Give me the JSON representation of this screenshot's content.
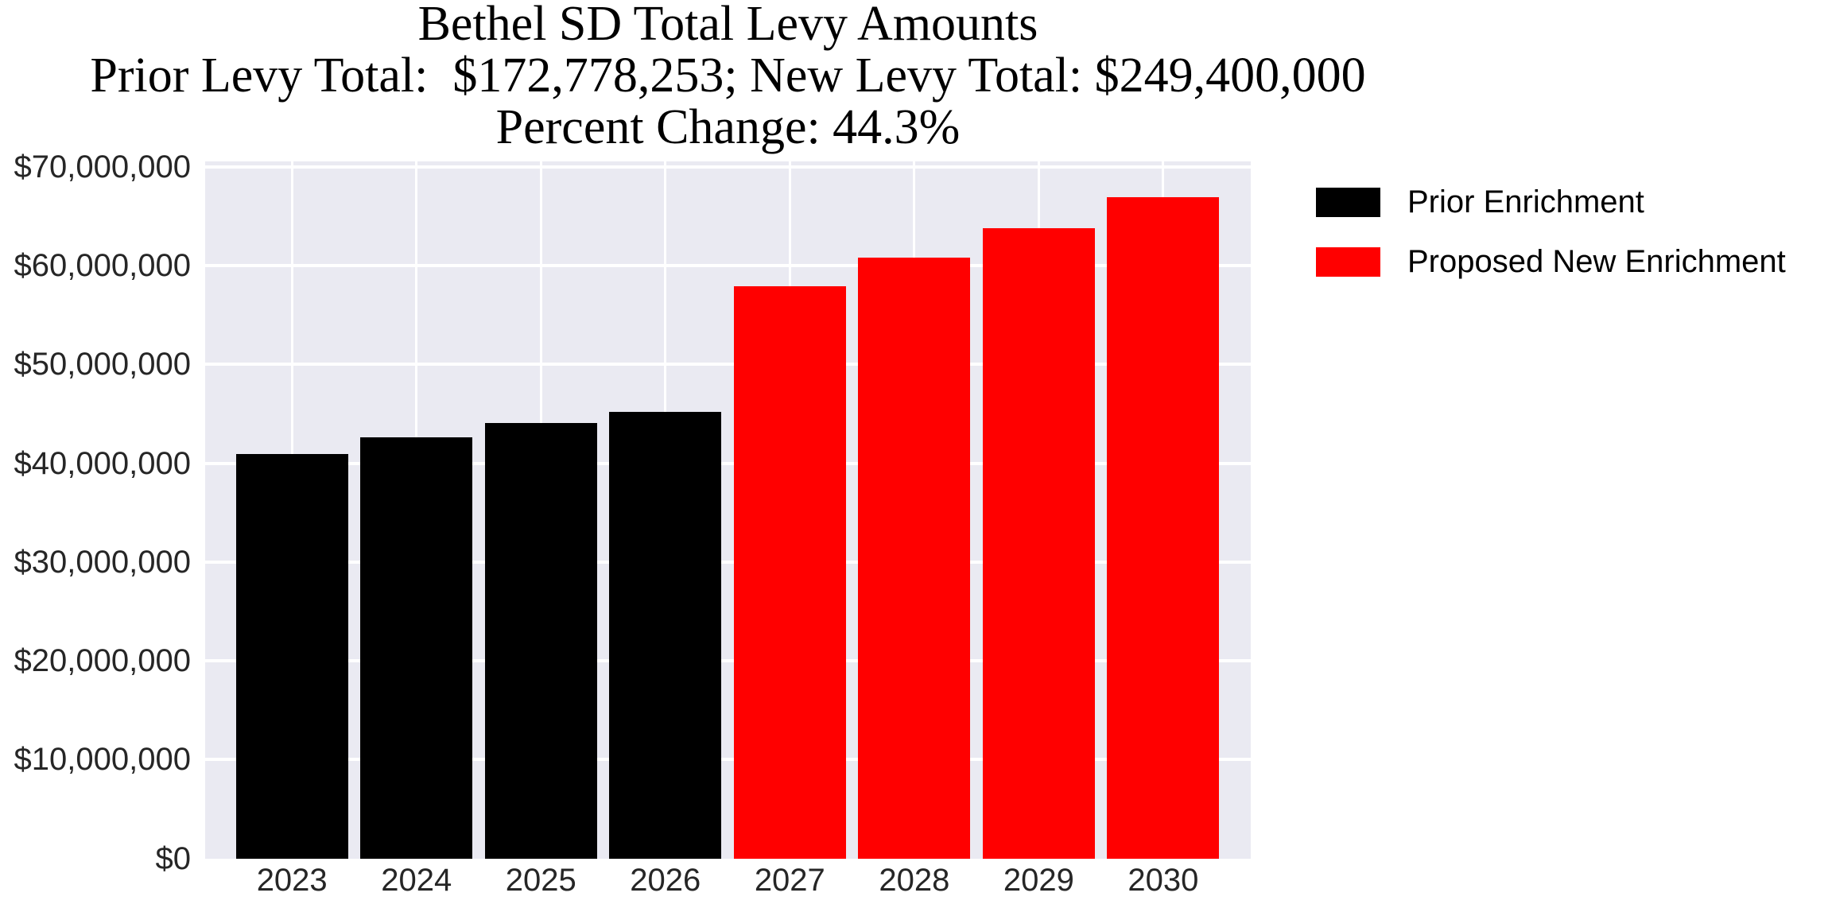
{
  "title": {
    "line1": "Bethel SD Total Levy Amounts",
    "line2": "Prior Levy Total:  $172,778,253; New Levy Total: $249,400,000",
    "line3": "Percent Change: 44.3%"
  },
  "legend": {
    "items": [
      {
        "label": "Prior Enrichment",
        "swatch": "black-swatch",
        "color": "#000000"
      },
      {
        "label": "Proposed New Enrichment",
        "swatch": "red-swatch",
        "color": "#ff0000"
      }
    ]
  },
  "axes": {
    "ytick_labels": [
      "$0",
      "$10,000,000",
      "$20,000,000",
      "$30,000,000",
      "$40,000,000",
      "$50,000,000",
      "$60,000,000",
      "$70,000,000"
    ],
    "xtick_labels": [
      "2023",
      "2024",
      "2025",
      "2026",
      "2027",
      "2028",
      "2029",
      "2030"
    ]
  },
  "chart_data": {
    "type": "bar",
    "title": "Bethel SD Total Levy Amounts",
    "subtitle": "Prior Levy Total:  $172,778,253; New Levy Total: $249,400,000 | Percent Change: 44.3%",
    "categories": [
      "2023",
      "2024",
      "2025",
      "2026",
      "2027",
      "2028",
      "2029",
      "2030"
    ],
    "series": [
      {
        "name": "Prior Enrichment",
        "color": "#000000",
        "values": [
          40900000,
          42600000,
          44100000,
          45200000,
          null,
          null,
          null,
          null
        ]
      },
      {
        "name": "Proposed New Enrichment",
        "color": "#ff0000",
        "values": [
          null,
          null,
          null,
          null,
          57900000,
          60800000,
          63800000,
          66900000
        ]
      }
    ],
    "prior_levy_total": 172778253,
    "new_levy_total": 249400000,
    "percent_change": 44.3,
    "ylim": [
      0,
      70500000
    ],
    "ytick_interval": 10000000,
    "xlabel": "",
    "ylabel": "",
    "grid": true,
    "grid_color": "#ffffff",
    "plot_background": "#eaeaf2",
    "legend_position": "upper-right-outside"
  }
}
